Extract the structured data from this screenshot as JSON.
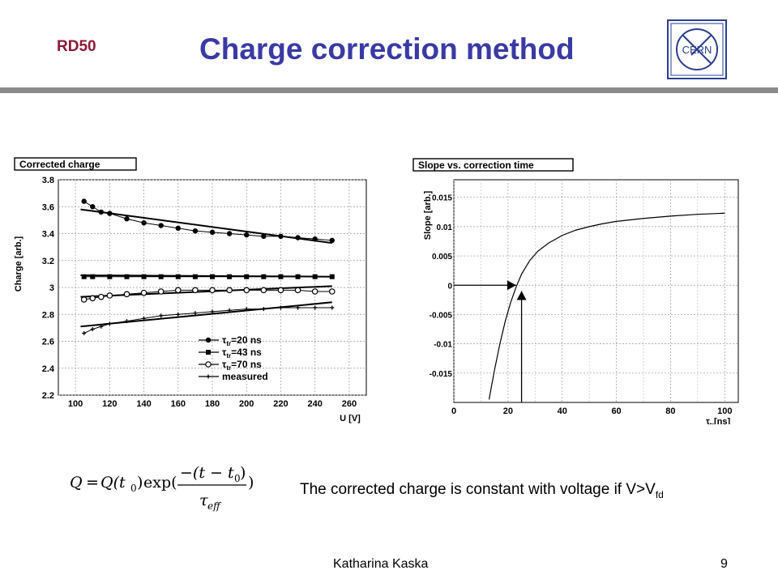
{
  "header": {
    "group_label": "RD50",
    "title": "Charge correction method"
  },
  "caption": {
    "text": "The corrected charge is constant with voltage if V>V",
    "subscript": "fd"
  },
  "formula": {
    "lhs": "Q",
    "eq": "=",
    "q_t0": "Q(t",
    "sub0": "0",
    "close": ")",
    "exp": "exp(",
    "numer_a": "−(t − t",
    "numer_sub": "0",
    "numer_b": ")",
    "tau": "τ",
    "tau_sub": "eff",
    "end": ")"
  },
  "footer": {
    "author": "Katharina Kaska",
    "page": "9"
  },
  "colors": {
    "title": "#3a3aa5",
    "group_label": "#8b1a3a",
    "divider": "#8a8a8a"
  },
  "logo": {
    "text": "CERN",
    "icon": "cern-logo"
  },
  "chart_data": [
    {
      "type": "scatter",
      "title": "Corrected charge",
      "xlabel": "U [V]",
      "ylabel": "Charge [arb.]",
      "xlim": [
        90,
        270
      ],
      "ylim": [
        2.2,
        3.8
      ],
      "xticks": [
        100,
        120,
        140,
        160,
        180,
        200,
        220,
        240,
        260
      ],
      "yticks": [
        2.2,
        2.4,
        2.6,
        2.8,
        3.0,
        3.2,
        3.4,
        3.6,
        3.8
      ],
      "ytick_labels": [
        "2.2",
        "2.4",
        "2.6",
        "2.8",
        "3",
        "3.2",
        "3.4",
        "3.6",
        "3.8"
      ],
      "grid": true,
      "legend_position": "bottom-right",
      "series": [
        {
          "name": "=20 ns",
          "marker": "circle-filled",
          "x": [
            105,
            110,
            115,
            120,
            130,
            140,
            150,
            160,
            170,
            180,
            190,
            200,
            210,
            220,
            230,
            240,
            250
          ],
          "y": [
            3.64,
            3.6,
            3.56,
            3.55,
            3.51,
            3.48,
            3.46,
            3.44,
            3.42,
            3.41,
            3.4,
            3.39,
            3.38,
            3.38,
            3.37,
            3.36,
            3.35
          ],
          "fit": [
            [
              103,
              3.58
            ],
            [
              250,
              3.33
            ]
          ]
        },
        {
          "name": "=43 ns",
          "marker": "square-filled",
          "x": [
            105,
            110,
            120,
            130,
            140,
            150,
            160,
            170,
            180,
            190,
            200,
            210,
            220,
            230,
            240,
            250
          ],
          "y": [
            3.08,
            3.08,
            3.08,
            3.08,
            3.08,
            3.08,
            3.08,
            3.08,
            3.08,
            3.08,
            3.08,
            3.08,
            3.08,
            3.08,
            3.08,
            3.08
          ],
          "fit": [
            [
              103,
              3.09
            ],
            [
              250,
              3.08
            ]
          ]
        },
        {
          "name": "=70 ns",
          "marker": "circle-open",
          "x": [
            105,
            110,
            115,
            120,
            130,
            140,
            150,
            160,
            170,
            180,
            190,
            200,
            210,
            220,
            230,
            240,
            250
          ],
          "y": [
            2.91,
            2.92,
            2.93,
            2.94,
            2.95,
            2.96,
            2.97,
            2.98,
            2.98,
            2.98,
            2.98,
            2.98,
            2.98,
            2.98,
            2.98,
            2.97,
            2.97
          ],
          "fit": [
            [
              103,
              2.93
            ],
            [
              250,
              3.01
            ]
          ]
        },
        {
          "name": "measured",
          "marker": "cross",
          "x": [
            105,
            110,
            115,
            120,
            130,
            140,
            150,
            160,
            170,
            180,
            190,
            200,
            210,
            220,
            230,
            240,
            250
          ],
          "y": [
            2.66,
            2.69,
            2.71,
            2.73,
            2.75,
            2.77,
            2.79,
            2.8,
            2.81,
            2.82,
            2.83,
            2.84,
            2.84,
            2.85,
            2.85,
            2.85,
            2.85
          ],
          "fit": [
            [
              103,
              2.71
            ],
            [
              250,
              2.89
            ]
          ]
        }
      ],
      "legend_tau": "τ",
      "legend_tau_sub": "tr"
    },
    {
      "type": "line",
      "title": "Slope vs. correction time",
      "xlabel": "[ns]",
      "xlabel_symbol": "τ",
      "xlabel_sub": "tr",
      "ylabel": "Slope [arb.]",
      "xlim": [
        0,
        105
      ],
      "ylim": [
        -0.02,
        0.018
      ],
      "xticks": [
        0,
        20,
        40,
        60,
        80,
        100
      ],
      "yticks": [
        0.015,
        0.01,
        0.005,
        0,
        -0.005,
        -0.01,
        -0.015
      ],
      "ytick_labels": [
        "0.015",
        "0.01",
        "0.005",
        "0",
        "-0.005",
        "-0.01",
        "-0.015"
      ],
      "grid": true,
      "x": [
        13,
        15,
        17,
        19,
        21,
        23,
        25,
        28,
        31,
        35,
        40,
        45,
        50,
        55,
        60,
        70,
        80,
        90,
        100
      ],
      "y": [
        -0.0195,
        -0.0145,
        -0.01,
        -0.0061,
        -0.0029,
        -0.0003,
        0.0019,
        0.0042,
        0.0058,
        0.0072,
        0.0085,
        0.0094,
        0.01,
        0.0105,
        0.0109,
        0.0114,
        0.0118,
        0.0121,
        0.0123
      ],
      "arrows": [
        {
          "from": [
            0,
            0
          ],
          "to": [
            23,
            0
          ]
        },
        {
          "from": [
            25,
            -0.02
          ],
          "to": [
            25,
            -0.001
          ]
        }
      ]
    }
  ]
}
